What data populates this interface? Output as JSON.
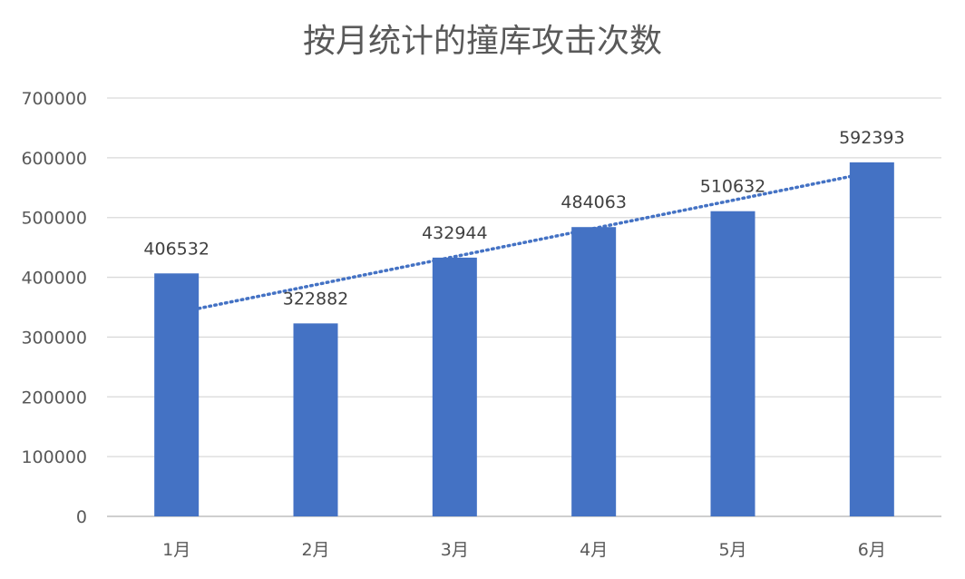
{
  "chart_data": {
    "type": "bar",
    "title": "按月统计的撞库攻击次数",
    "categories": [
      "1月",
      "2月",
      "3月",
      "4月",
      "5月",
      "6月"
    ],
    "values": [
      406532,
      322882,
      432944,
      484063,
      510632,
      592393
    ],
    "data_labels": [
      "406532",
      "322882",
      "432944",
      "484063",
      "510632",
      "592393"
    ],
    "y_ticks": [
      "0",
      "100000",
      "200000",
      "300000",
      "400000",
      "500000",
      "600000",
      "700000"
    ],
    "ylim": [
      0,
      700000
    ],
    "grid": true,
    "trendline": "linear",
    "bar_color": "#4472c4"
  }
}
